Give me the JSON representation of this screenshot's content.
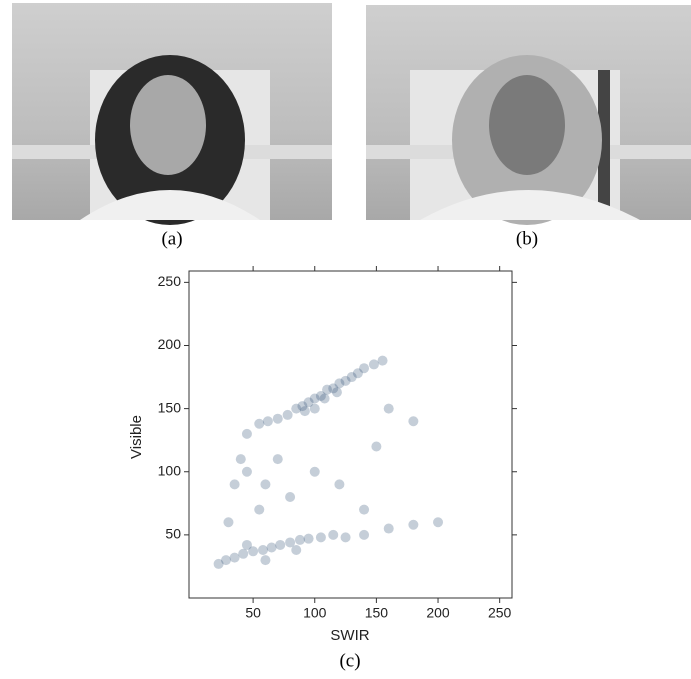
{
  "panels": [
    {
      "caption": "(a)"
    },
    {
      "caption": "(b)"
    }
  ],
  "chart_data": {
    "type": "scatter",
    "caption": "(c)",
    "xlabel": "SWIR",
    "ylabel": "Visible",
    "color": "#2f4f74",
    "x": [
      45,
      55,
      62,
      70,
      78,
      85,
      90,
      95,
      100,
      105,
      110,
      115,
      120,
      125,
      130,
      135,
      140,
      148,
      155,
      92,
      108,
      118,
      100,
      22,
      28,
      35,
      42,
      50,
      58,
      65,
      72,
      80,
      88,
      95,
      105,
      115,
      125,
      140,
      160,
      180,
      200,
      60,
      85,
      45,
      30,
      35,
      40,
      45,
      60,
      70,
      80,
      100,
      120,
      55,
      140,
      160,
      180,
      150
    ],
    "y": [
      130,
      138,
      140,
      142,
      145,
      150,
      152,
      155,
      158,
      160,
      165,
      166,
      170,
      172,
      175,
      178,
      182,
      185,
      188,
      148,
      158,
      163,
      150,
      27,
      30,
      32,
      35,
      37,
      38,
      40,
      42,
      44,
      46,
      47,
      48,
      50,
      48,
      50,
      55,
      58,
      60,
      30,
      38,
      42,
      60,
      90,
      110,
      100,
      90,
      110,
      80,
      100,
      90,
      70,
      70,
      150,
      140,
      120
    ],
    "xlim": [
      -2,
      260
    ],
    "ylim": [
      0,
      259
    ],
    "xticks": [
      50,
      100,
      150,
      200,
      250
    ],
    "yticks": [
      50,
      100,
      150,
      200,
      250
    ]
  }
}
